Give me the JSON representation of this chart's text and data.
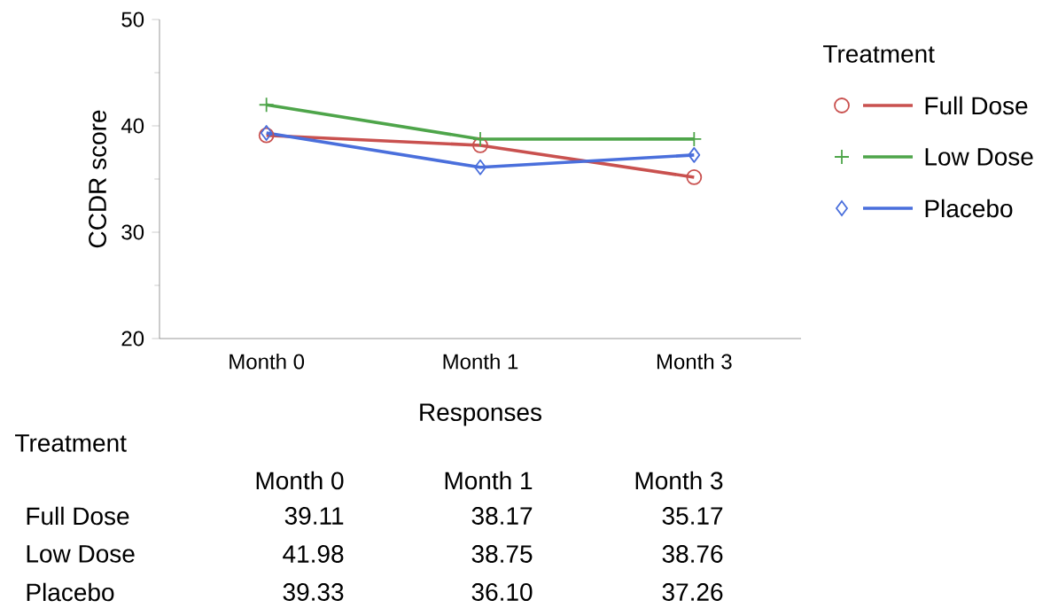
{
  "chart_data": {
    "type": "line",
    "xlabel": "Responses",
    "ylabel": "CCDR score",
    "legend_title": "Treatment",
    "categories": [
      "Month 0",
      "Month 1",
      "Month 3"
    ],
    "series": [
      {
        "name": "Full Dose",
        "color": "#c9514f",
        "marker": "circle",
        "values": [
          39.11,
          38.17,
          35.17
        ],
        "value_labels": [
          "39.11",
          "38.17",
          "35.17"
        ]
      },
      {
        "name": "Low Dose",
        "color": "#4ea54a",
        "marker": "cross",
        "values": [
          41.98,
          38.75,
          38.76
        ],
        "value_labels": [
          "41.98",
          "38.75",
          "38.76"
        ]
      },
      {
        "name": "Placebo",
        "color": "#4a6fdc",
        "marker": "diamond",
        "values": [
          39.33,
          36.1,
          37.26
        ],
        "value_labels": [
          "39.33",
          "36.10",
          "37.26"
        ]
      }
    ],
    "ylim": [
      20,
      50
    ],
    "yticks": [
      20,
      30,
      40,
      50
    ],
    "legend": "right",
    "annotations": [
      "Treatment"
    ]
  }
}
